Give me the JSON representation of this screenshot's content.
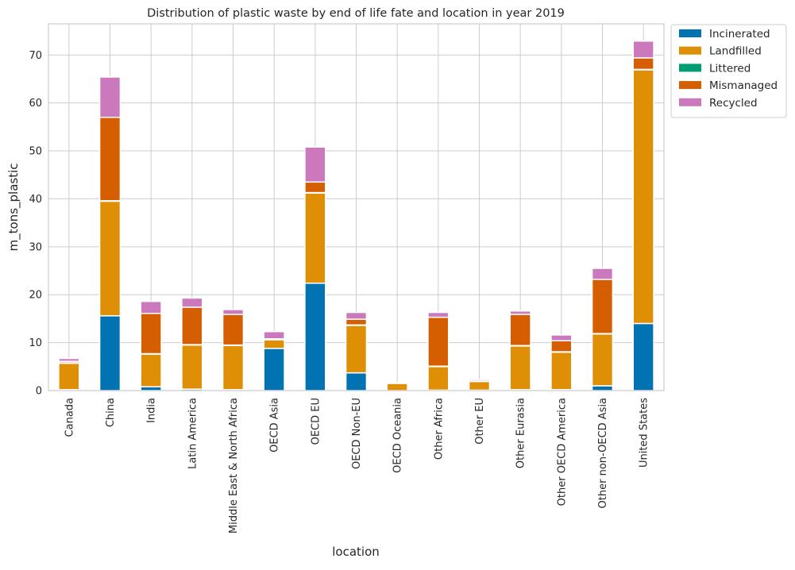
{
  "chart_data": {
    "type": "bar",
    "stacked": true,
    "title": "Distribution of plastic waste by end of life fate and location in year 2019",
    "xlabel": "location",
    "ylabel": "m_tons_plastic",
    "ylim": [
      0,
      76.5
    ],
    "yticks": [
      0,
      10,
      20,
      30,
      40,
      50,
      60,
      70
    ],
    "grid": true,
    "legend_position": "outside-top-right",
    "categories": [
      "Canada",
      "China",
      "India",
      "Latin America",
      "Middle East & North Africa",
      "OECD Asia",
      "OECD EU",
      "OECD Non-EU",
      "OECD Oceania",
      "Other Africa",
      "Other EU",
      "Other Eurasia",
      "Other OECD America",
      "Other non-OECD Asia",
      "United States"
    ],
    "series": [
      {
        "name": "Incinerated",
        "color": "#0173b2",
        "values": [
          0.2,
          15.6,
          0.8,
          0.3,
          0.2,
          8.8,
          22.4,
          3.7,
          0.0,
          0.1,
          0.1,
          0.2,
          0.2,
          1.0,
          14.0
        ]
      },
      {
        "name": "Landfilled",
        "color": "#de8f05",
        "values": [
          5.5,
          23.9,
          6.8,
          9.2,
          9.2,
          1.8,
          18.8,
          9.9,
          1.5,
          4.9,
          1.8,
          9.1,
          7.8,
          10.8,
          52.9
        ]
      },
      {
        "name": "Littered",
        "color": "#029e73",
        "values": [
          0.1,
          0.1,
          0.1,
          0.1,
          0.1,
          0.1,
          0.1,
          0.1,
          0.0,
          0.1,
          0.0,
          0.1,
          0.1,
          0.1,
          0.1
        ]
      },
      {
        "name": "Mismanaged",
        "color": "#d55e00",
        "values": [
          0.3,
          17.4,
          8.4,
          7.8,
          6.4,
          0.1,
          2.2,
          1.2,
          0.0,
          10.2,
          0.1,
          6.5,
          2.3,
          11.3,
          2.4
        ]
      },
      {
        "name": "Recycled",
        "color": "#cc78bc",
        "values": [
          0.6,
          8.4,
          2.5,
          1.9,
          1.0,
          1.5,
          7.3,
          1.4,
          0.2,
          1.0,
          0.3,
          0.7,
          1.2,
          2.3,
          3.5
        ]
      }
    ]
  }
}
